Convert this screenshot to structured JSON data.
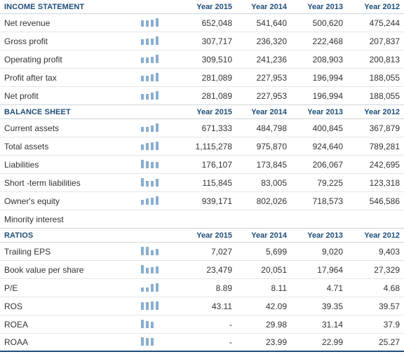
{
  "sections": [
    {
      "title": "INCOME STATEMENT",
      "years": [
        "Year 2015",
        "Year 2014",
        "Year 2013",
        "Year 2012"
      ],
      "rows": [
        {
          "label": "Net revenue",
          "values": [
            "652,048",
            "541,640",
            "500,620",
            "475,244"
          ],
          "spark": [
            652048,
            541640,
            500620,
            475244
          ]
        },
        {
          "label": "Gross profit",
          "values": [
            "307,717",
            "236,320",
            "222,468",
            "207,837"
          ],
          "spark": [
            307717,
            236320,
            222468,
            207837
          ]
        },
        {
          "label": "Operating profit",
          "values": [
            "309,510",
            "241,236",
            "208,903",
            "200,813"
          ],
          "spark": [
            309510,
            241236,
            208903,
            200813
          ]
        },
        {
          "label": "Profit after tax",
          "values": [
            "281,089",
            "227,953",
            "196,994",
            "188,055"
          ],
          "spark": [
            281089,
            227953,
            196994,
            188055
          ]
        },
        {
          "label": "Net profit",
          "values": [
            "281,089",
            "227,953",
            "196,994",
            "188,055"
          ],
          "spark": [
            281089,
            227953,
            196994,
            188055
          ]
        }
      ]
    },
    {
      "title": "BALANCE SHEET",
      "years": [
        "Year 2015",
        "Year 2014",
        "Year 2013",
        "Year 2012"
      ],
      "rows": [
        {
          "label": "Current assets",
          "values": [
            "671,333",
            "484,798",
            "400,845",
            "367,879"
          ],
          "spark": [
            671333,
            484798,
            400845,
            367879
          ]
        },
        {
          "label": "Total assets",
          "values": [
            "1,115,278",
            "975,870",
            "924,640",
            "789,281"
          ],
          "spark": [
            1115278,
            975870,
            924640,
            789281
          ]
        },
        {
          "label": "Liabilities",
          "values": [
            "176,107",
            "173,845",
            "206,067",
            "242,695"
          ],
          "spark": [
            176107,
            173845,
            206067,
            242695
          ]
        },
        {
          "label": "Short -term liabilities",
          "values": [
            "115,845",
            "83,005",
            "79,225",
            "123,318"
          ],
          "spark": [
            115845,
            83005,
            79225,
            123318
          ]
        },
        {
          "label": "Owner's equity",
          "values": [
            "939,171",
            "802,026",
            "718,573",
            "546,586"
          ],
          "spark": [
            939171,
            802026,
            718573,
            546586
          ]
        },
        {
          "label": "Minority interest",
          "values": [
            "",
            "",
            "",
            ""
          ],
          "spark": []
        }
      ]
    },
    {
      "title": "RATIOS",
      "years": [
        "Year 2015",
        "Year 2014",
        "Year 2013",
        "Year 2012"
      ],
      "rows": [
        {
          "label": "Trailing EPS",
          "values": [
            "7,027",
            "5,699",
            "9,020",
            "9,403"
          ],
          "spark": [
            7027,
            5699,
            9020,
            9403
          ]
        },
        {
          "label": "Book value per share",
          "values": [
            "23,479",
            "20,051",
            "17,964",
            "27,329"
          ],
          "spark": [
            23479,
            20051,
            17964,
            27329
          ]
        },
        {
          "label": "P/E",
          "values": [
            "8.89",
            "8.11",
            "4.71",
            "4.68"
          ],
          "spark": [
            8.89,
            8.11,
            4.71,
            4.68
          ]
        },
        {
          "label": "ROS",
          "values": [
            "43.11",
            "42.09",
            "39.35",
            "39.57"
          ],
          "spark": [
            43.11,
            42.09,
            39.35,
            39.57
          ]
        },
        {
          "label": "ROEA",
          "values": [
            "-",
            "29.98",
            "31.14",
            "37.9"
          ],
          "spark": [
            0,
            29.98,
            31.14,
            37.9
          ]
        },
        {
          "label": "ROAA",
          "values": [
            "-",
            "23.99",
            "22.99",
            "25.27"
          ],
          "spark": [
            0,
            23.99,
            22.99,
            25.27
          ]
        }
      ]
    }
  ],
  "colors": {
    "header_text": "#1f4e79",
    "spark_bar": "#8aaecf",
    "row_border": "#e3e6ea",
    "bottom_rule": "#1f4e79"
  }
}
